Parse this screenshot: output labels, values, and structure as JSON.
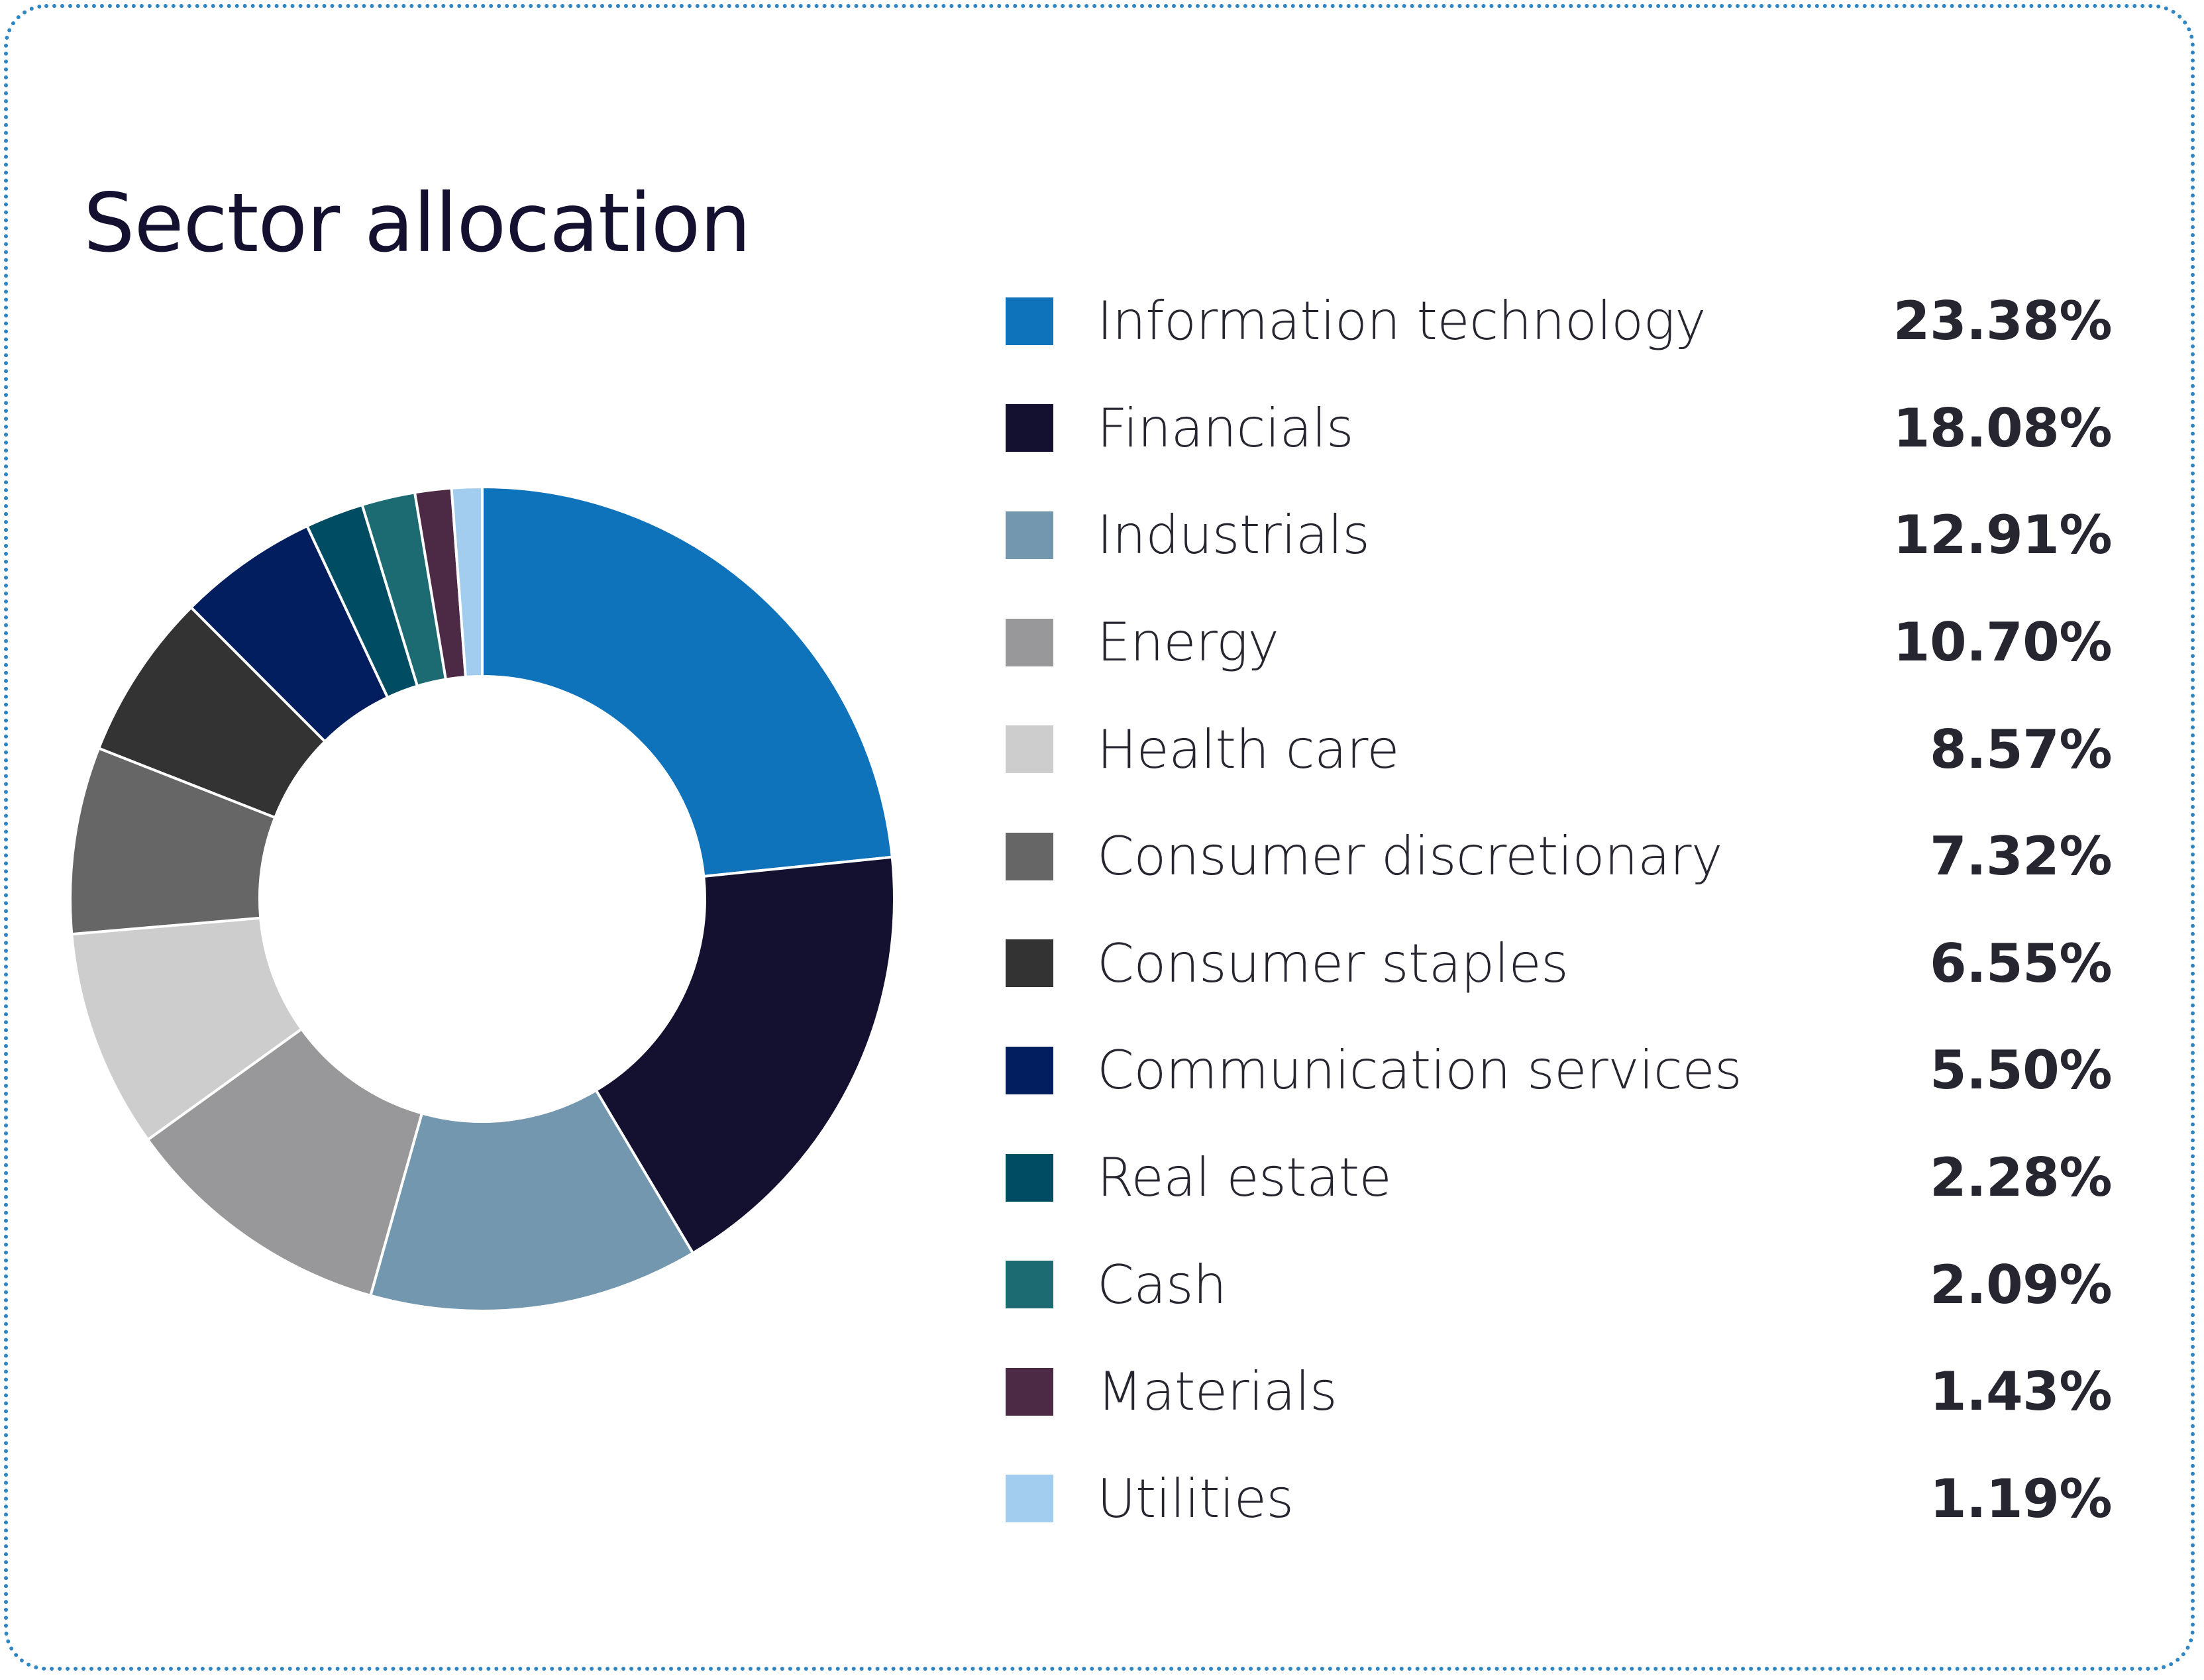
{
  "chart_data": {
    "type": "pie",
    "title": "Sector allocation",
    "categories": [
      "Information technology",
      "Financials",
      "Industrials",
      "Energy",
      "Health care",
      "Consumer discretionary",
      "Consumer staples",
      "Communication services",
      "Real estate",
      "Cash",
      "Materials",
      "Utilities"
    ],
    "values": [
      23.38,
      18.08,
      12.91,
      10.7,
      8.57,
      7.32,
      6.55,
      5.5,
      2.28,
      2.09,
      1.43,
      1.19
    ],
    "value_labels": [
      "23.38%",
      "18.08%",
      "12.91%",
      "10.70%",
      "8.57%",
      "7.32%",
      "6.55%",
      "5.50%",
      "2.28%",
      "2.09%",
      "1.43%",
      "1.19%"
    ],
    "colors": [
      "#0f73bc",
      "#13112f",
      "#7297ae",
      "#98989a",
      "#cdcdcd",
      "#666666",
      "#333333",
      "#021e5e",
      "#004c63",
      "#1c6b72",
      "#4c2a46",
      "#a3cdef"
    ],
    "legend_placement": "right",
    "hole": true
  }
}
